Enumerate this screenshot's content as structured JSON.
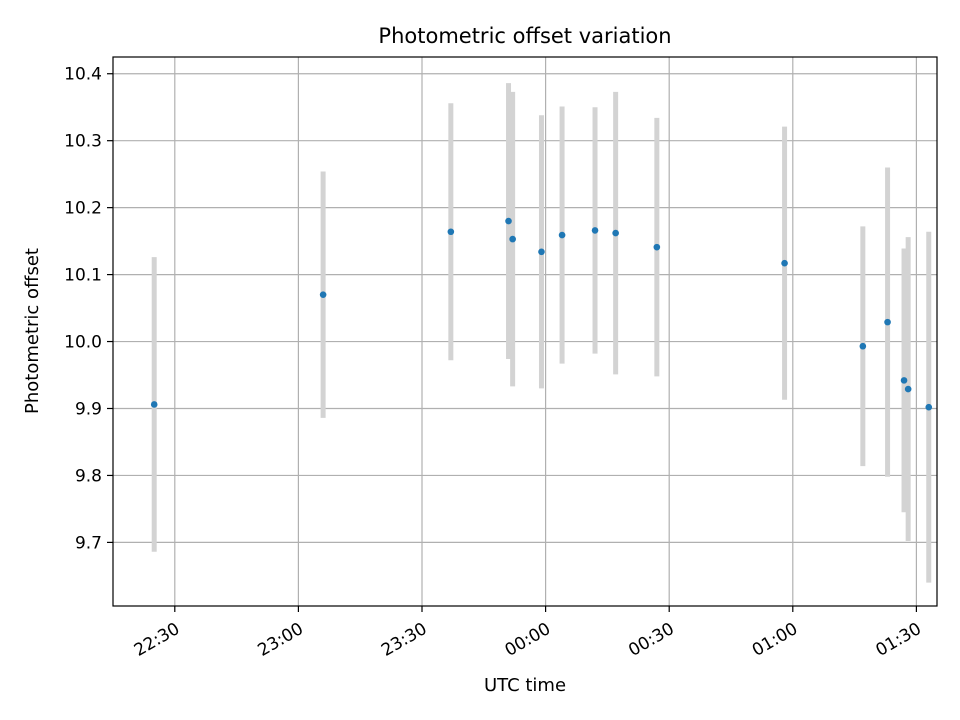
{
  "chart_data": {
    "type": "scatter",
    "title": "Photometric offset variation",
    "xlabel": "UTC time",
    "ylabel": "Photometric offset",
    "grid": true,
    "legend": "none",
    "x_ticks": [
      "22:30",
      "23:00",
      "23:30",
      "00:00",
      "00:30",
      "01:00",
      "01:30"
    ],
    "y_ticks": [
      "9.7",
      "9.8",
      "9.9",
      "10.0",
      "10.1",
      "10.2",
      "10.3",
      "10.4"
    ],
    "xlim": [
      "22:15",
      "01:35"
    ],
    "ylim": [
      9.605,
      10.425
    ],
    "colors": {
      "point": "#1f77b4",
      "errorbar": "#d3d3d3",
      "grid": "#b0b0b0"
    },
    "points": [
      {
        "x": "22:25",
        "y": 9.906,
        "err": 0.22
      },
      {
        "x": "23:06",
        "y": 10.07,
        "err": 0.184
      },
      {
        "x": "23:37",
        "y": 10.164,
        "err": 0.192
      },
      {
        "x": "23:51",
        "y": 10.18,
        "err": 0.206
      },
      {
        "x": "23:52",
        "y": 10.153,
        "err": 0.22
      },
      {
        "x": "23:59",
        "y": 10.134,
        "err": 0.204
      },
      {
        "x": "00:04",
        "y": 10.159,
        "err": 0.192
      },
      {
        "x": "00:12",
        "y": 10.166,
        "err": 0.184
      },
      {
        "x": "00:17",
        "y": 10.162,
        "err": 0.211
      },
      {
        "x": "00:27",
        "y": 10.141,
        "err": 0.193
      },
      {
        "x": "00:58",
        "y": 10.117,
        "err": 0.204
      },
      {
        "x": "01:17",
        "y": 9.993,
        "err": 0.179
      },
      {
        "x": "01:23",
        "y": 10.029,
        "err": 0.231
      },
      {
        "x": "01:27",
        "y": 9.942,
        "err": 0.197
      },
      {
        "x": "01:28",
        "y": 9.929,
        "err": 0.227
      },
      {
        "x": "01:33",
        "y": 9.902,
        "err": 0.262
      }
    ]
  }
}
